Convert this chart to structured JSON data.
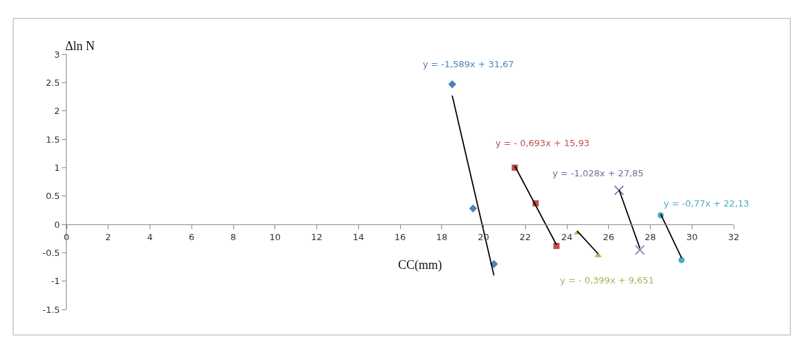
{
  "chart_data": {
    "type": "scatter",
    "xlabel": "CC(mm)",
    "ylabel": "Δln N",
    "xlim": [
      0,
      32
    ],
    "ylim": [
      -1.5,
      3
    ],
    "xticks": [
      0,
      2,
      4,
      6,
      8,
      10,
      12,
      14,
      16,
      18,
      20,
      22,
      24,
      26,
      28,
      30,
      32
    ],
    "yticks": [
      -1.5,
      -1,
      -0.5,
      0,
      0.5,
      1,
      1.5,
      2,
      2.5,
      3
    ],
    "series": [
      {
        "marker": "diamond",
        "color": "#4f81bd",
        "x": [
          18.5,
          19.5,
          20.5
        ],
        "values": [
          2.47,
          0.28,
          -0.7
        ]
      },
      {
        "marker": "square",
        "color": "#c0504d",
        "x": [
          21.5,
          22.5,
          23.5
        ],
        "values": [
          1.0,
          0.37,
          -0.38
        ]
      },
      {
        "marker": "triangle",
        "color": "#9bbb59",
        "x": [
          24.5,
          25.5
        ],
        "values": [
          -0.15,
          -0.55
        ]
      },
      {
        "marker": "cross",
        "color": "#8064a2",
        "x": [
          26.5,
          27.5
        ],
        "values": [
          0.6,
          -0.45
        ]
      },
      {
        "marker": "circle",
        "color": "#4bacc6",
        "x": [
          28.5,
          29.5
        ],
        "values": [
          0.16,
          -0.63
        ]
      },
      {
        "type": "line",
        "marker": "none",
        "color": "#000000",
        "x": [
          18.5,
          20.5
        ],
        "values": [
          2.27,
          -0.9
        ]
      },
      {
        "type": "line",
        "marker": "none",
        "color": "#000000",
        "x": [
          21.5,
          23.5
        ],
        "values": [
          1.03,
          -0.36
        ]
      },
      {
        "type": "line",
        "marker": "none",
        "color": "#000000",
        "x": [
          24.5,
          25.5
        ],
        "values": [
          -0.12,
          -0.52
        ]
      },
      {
        "type": "line",
        "marker": "none",
        "color": "#000000",
        "x": [
          26.5,
          27.5
        ],
        "values": [
          0.61,
          -0.42
        ]
      },
      {
        "type": "line",
        "marker": "none",
        "color": "#000000",
        "x": [
          28.5,
          29.5
        ],
        "values": [
          0.18,
          -0.59
        ]
      }
    ],
    "annotations": [
      "y = -1,589x + 31,67",
      "y = - 0,693x + 15,93",
      "y = - 0,399x + 9,651",
      "y = -1,028x + 27,85",
      "y = -0,77x + 22,13"
    ]
  }
}
